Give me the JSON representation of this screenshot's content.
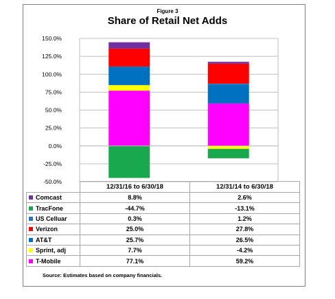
{
  "figure_label": "Figure 3",
  "source_note": "Source:  Estimates based on company financials.",
  "chart_data": {
    "type": "bar",
    "stacked": true,
    "title": "Share of Retail Net Adds",
    "categories": [
      "12/31/16 to 6/30/18",
      "12/31/14 to 6/30/18"
    ],
    "ylim": [
      -50,
      150
    ],
    "yticks": [
      "-50.0%",
      "-25.0%",
      "0.0%",
      "25.0%",
      "50.0%",
      "75.0%",
      "100.0%",
      "125.0%",
      "150.0%"
    ],
    "ytick_values": [
      -50,
      -25,
      0,
      25,
      50,
      75,
      100,
      125,
      150
    ],
    "grid": true,
    "legend_placement": "table-left",
    "series": [
      {
        "name": "Comcast",
        "color": "#7030a0",
        "values": [
          8.8,
          2.6
        ],
        "labels": [
          "8.8%",
          "2.6%"
        ]
      },
      {
        "name": "TracFone",
        "color": "#1aa84f",
        "values": [
          -44.7,
          -13.1
        ],
        "labels": [
          "-44.7%",
          "-13.1%"
        ]
      },
      {
        "name": "US Celluar",
        "color": "#2e75b6",
        "values": [
          0.3,
          1.2
        ],
        "labels": [
          "0.3%",
          "1.2%"
        ]
      },
      {
        "name": "Verizon",
        "color": "#ff0000",
        "values": [
          25.0,
          27.8
        ],
        "labels": [
          "25.0%",
          "27.8%"
        ]
      },
      {
        "name": "AT&T",
        "color": "#0070c0",
        "values": [
          25.7,
          26.5
        ],
        "labels": [
          "25.7%",
          "26.5%"
        ]
      },
      {
        "name": "Sprint, adj",
        "color": "#ffff00",
        "values": [
          7.7,
          -4.2
        ],
        "labels": [
          "7.7%",
          "-4.2%"
        ]
      },
      {
        "name": "T-Mobile",
        "color": "#ff00ff",
        "values": [
          77.1,
          59.2
        ],
        "labels": [
          "77.1%",
          "59.2%"
        ]
      }
    ]
  }
}
